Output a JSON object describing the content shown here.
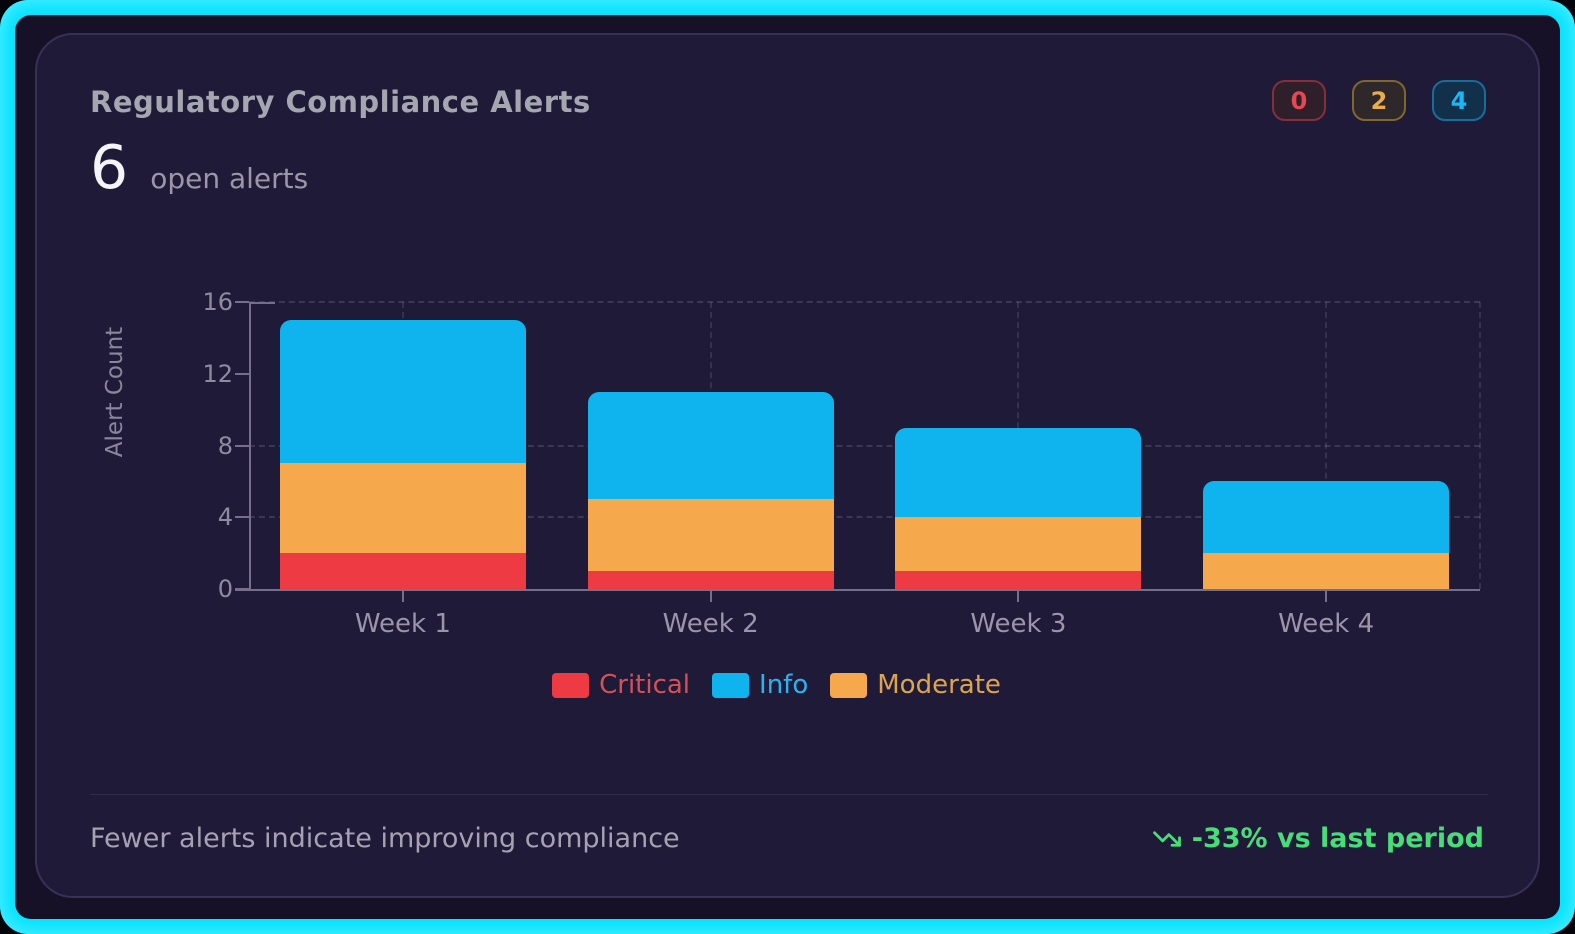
{
  "card": {
    "title": "Regulatory Compliance Alerts",
    "stat": {
      "value": "6",
      "label": "open alerts"
    },
    "badges": [
      {
        "name": "critical-count",
        "value": "0",
        "color": "#e5484f",
        "border": "#842f39",
        "bg": "#2f1f2b"
      },
      {
        "name": "moderate-count",
        "value": "2",
        "color": "#e8ae4d",
        "border": "#80672f",
        "bg": "#2e282a"
      },
      {
        "name": "info-count",
        "value": "4",
        "color": "#19b7f6",
        "border": "#1a6c9d",
        "bg": "#12304a"
      }
    ],
    "footer": {
      "note": "Fewer alerts indicate improving compliance",
      "trend": "-33% vs last period",
      "trend_color": "#47dd78",
      "trend_icon": "trending-down-icon"
    }
  },
  "chart_data": {
    "type": "bar",
    "stacked": true,
    "title": "Regulatory Compliance Alerts",
    "categories": [
      "Week 1",
      "Week 2",
      "Week 3",
      "Week 4"
    ],
    "series": [
      {
        "name": "Critical",
        "color": "#ee3b43",
        "values": [
          2,
          1,
          1,
          0
        ]
      },
      {
        "name": "Moderate",
        "color": "#f5a94c",
        "values": [
          5,
          4,
          3,
          2
        ]
      },
      {
        "name": "Info",
        "color": "#0fb3ee",
        "values": [
          8,
          6,
          5,
          4
        ]
      }
    ],
    "totals": [
      15,
      11,
      9,
      6
    ],
    "legend": [
      {
        "label": "Critical",
        "color": "#ee3b43",
        "text_color": "#d35157"
      },
      {
        "label": "Info",
        "color": "#0fb3ee",
        "text_color": "#2ab3ee"
      },
      {
        "label": "Moderate",
        "color": "#f5a94c",
        "text_color": "#dca44d"
      }
    ],
    "xlabel": "",
    "ylabel": "Alert Count",
    "ylim": [
      0,
      16
    ],
    "yticks": [
      0,
      4,
      8,
      12,
      16
    ],
    "h_gridlines": [
      4,
      8,
      16
    ],
    "grid_style": "dashed",
    "legend_position": "bottom"
  },
  "colors": {
    "frame": "#00e2ff",
    "panel_bg": "#161126",
    "card_bg": "#201a39",
    "card_border": "#373156",
    "axis": "#756f8c",
    "gridline": "rgba(255,255,255,0.13)"
  }
}
